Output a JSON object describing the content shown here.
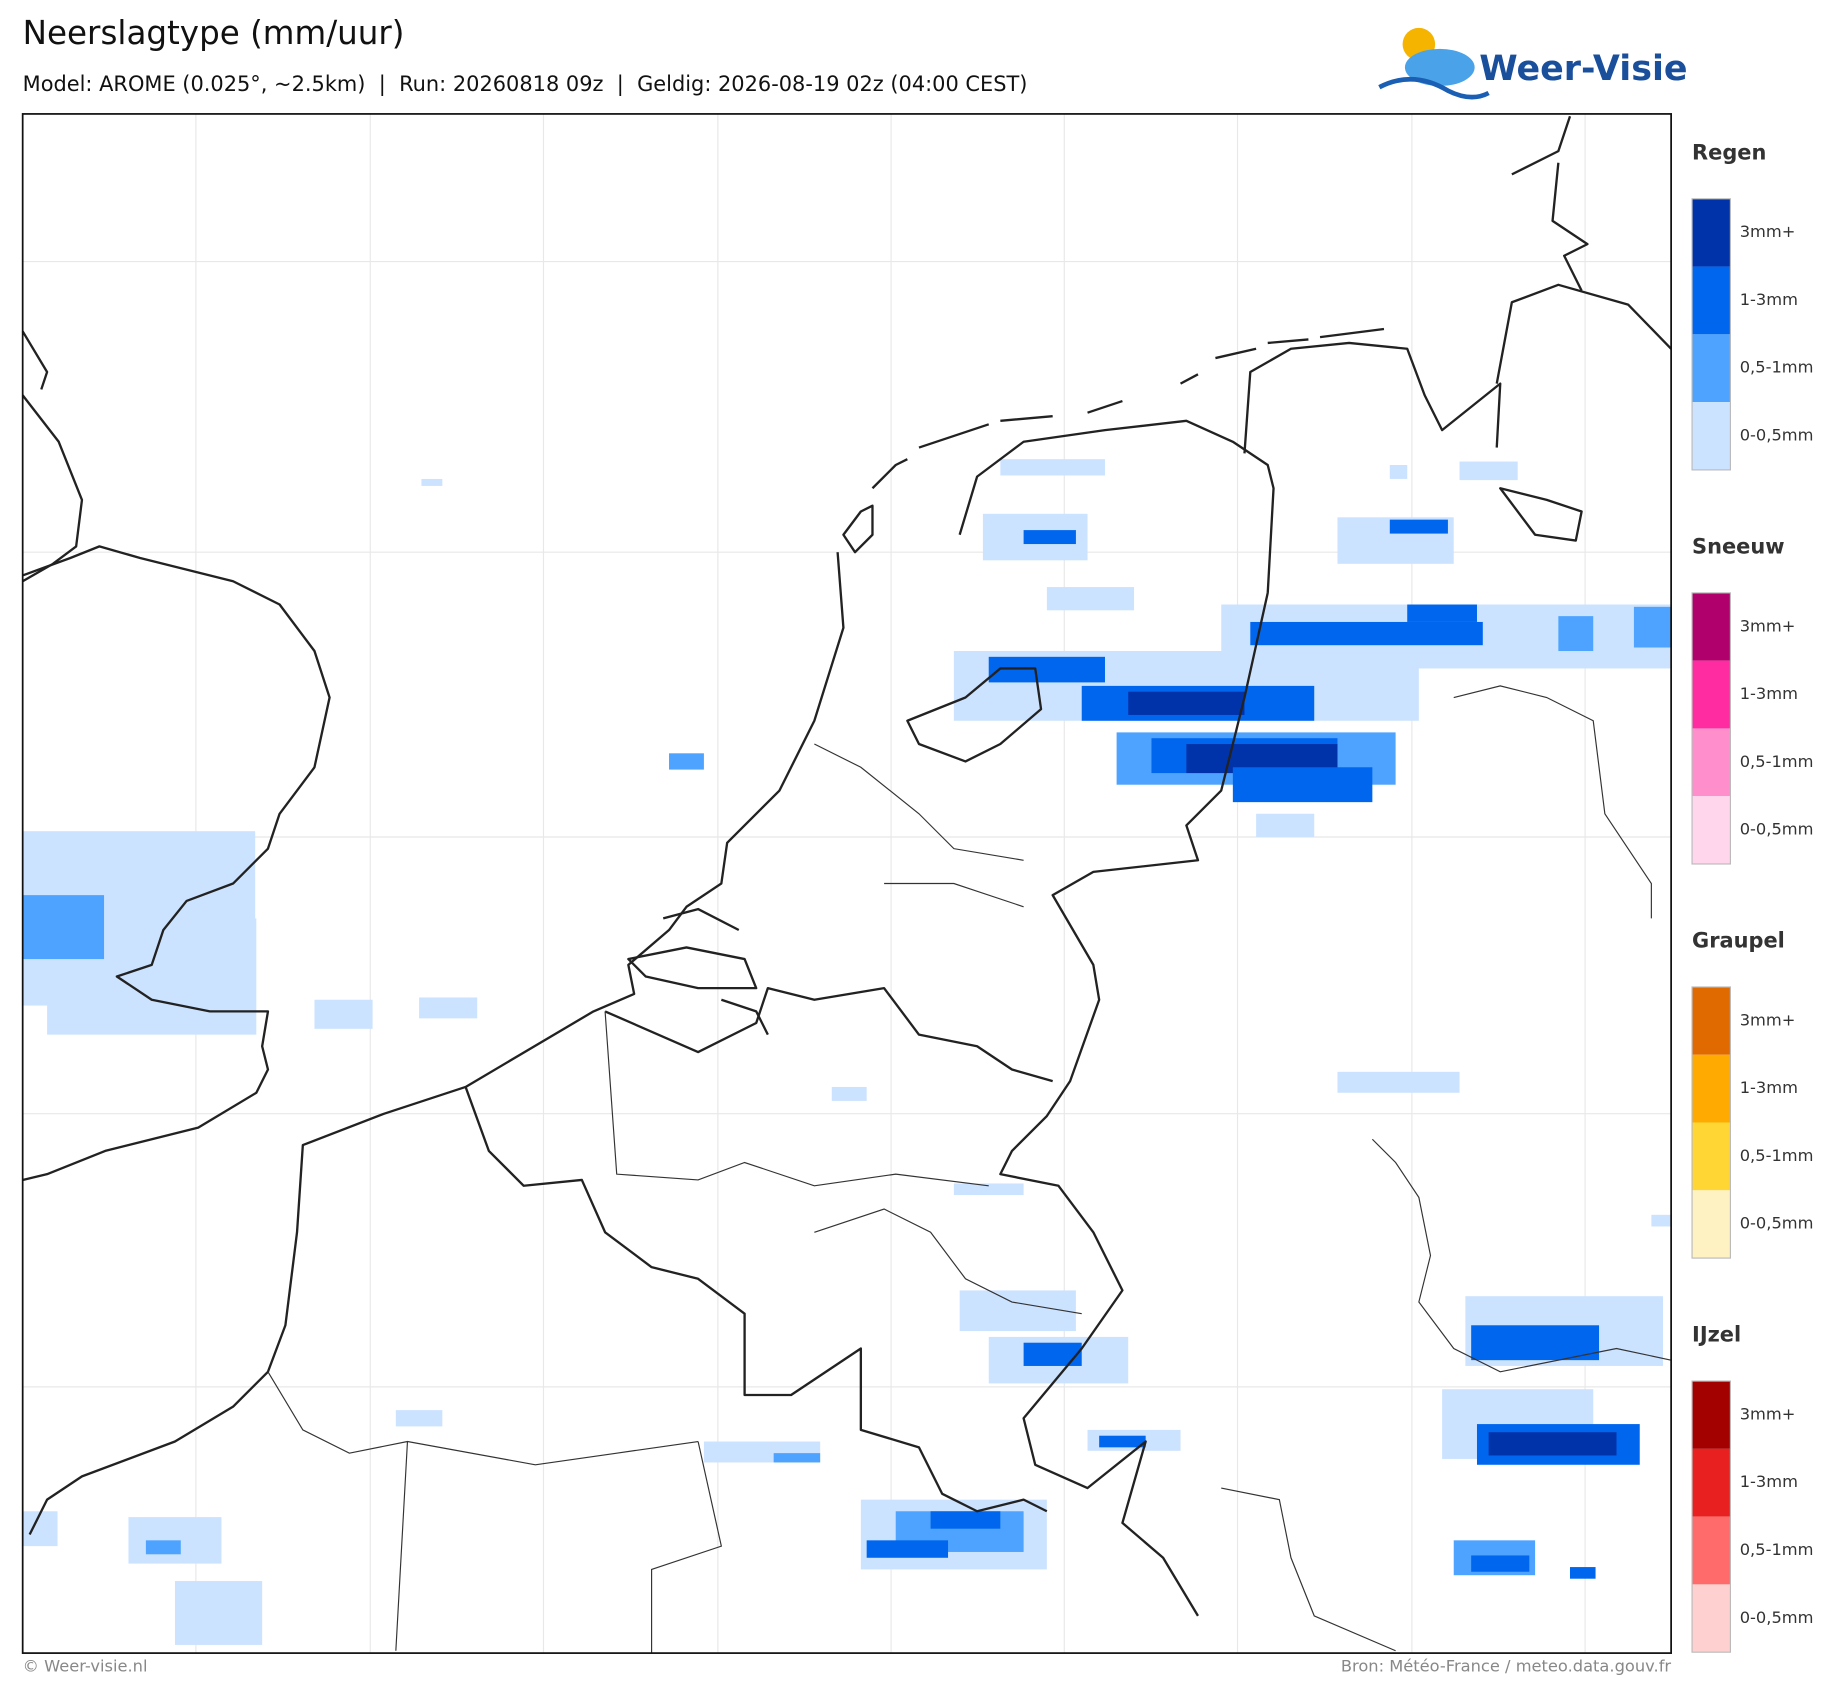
{
  "header": {
    "title": "Neerslagtype (mm/uur)",
    "subtitle": "Model: AROME (0.025°, ~2.5km)  |  Run: 20260818 09z  |  Geldig: 2026-08-19 02z (04:00 CEST)",
    "logo": "Weer-Visie"
  },
  "legend": [
    {
      "title": "Regen",
      "items": [
        {
          "label": "3mm+",
          "color": "#0033aa"
        },
        {
          "label": "1-3mm",
          "color": "#0066ee"
        },
        {
          "label": "0,5-1mm",
          "color": "#4da3ff"
        },
        {
          "label": "0-0,5mm",
          "color": "#cce3ff"
        }
      ]
    },
    {
      "title": "Sneeuw",
      "items": [
        {
          "label": "3mm+",
          "color": "#b0006b"
        },
        {
          "label": "1-3mm",
          "color": "#ff2ba0"
        },
        {
          "label": "0,5-1mm",
          "color": "#ff8fcc"
        },
        {
          "label": "0-0,5mm",
          "color": "#ffd6ec"
        }
      ]
    },
    {
      "title": "Graupel",
      "items": [
        {
          "label": "3mm+",
          "color": "#e06a00"
        },
        {
          "label": "1-3mm",
          "color": "#ffaa00"
        },
        {
          "label": "0,5-1mm",
          "color": "#ffd633"
        },
        {
          "label": "0-0,5mm",
          "color": "#fff2c2"
        }
      ]
    },
    {
      "title": "IJzel",
      "items": [
        {
          "label": "3mm+",
          "color": "#a30000"
        },
        {
          "label": "1-3mm",
          "color": "#e82020"
        },
        {
          "label": "0,5-1mm",
          "color": "#ff6a6a"
        },
        {
          "label": "0-0,5mm",
          "color": "#ffd0d0"
        }
      ]
    }
  ],
  "footer": {
    "left": "© Weer-visie.nl",
    "right": "Bron: Météo-France / meteo.data.gouv.fr"
  }
}
